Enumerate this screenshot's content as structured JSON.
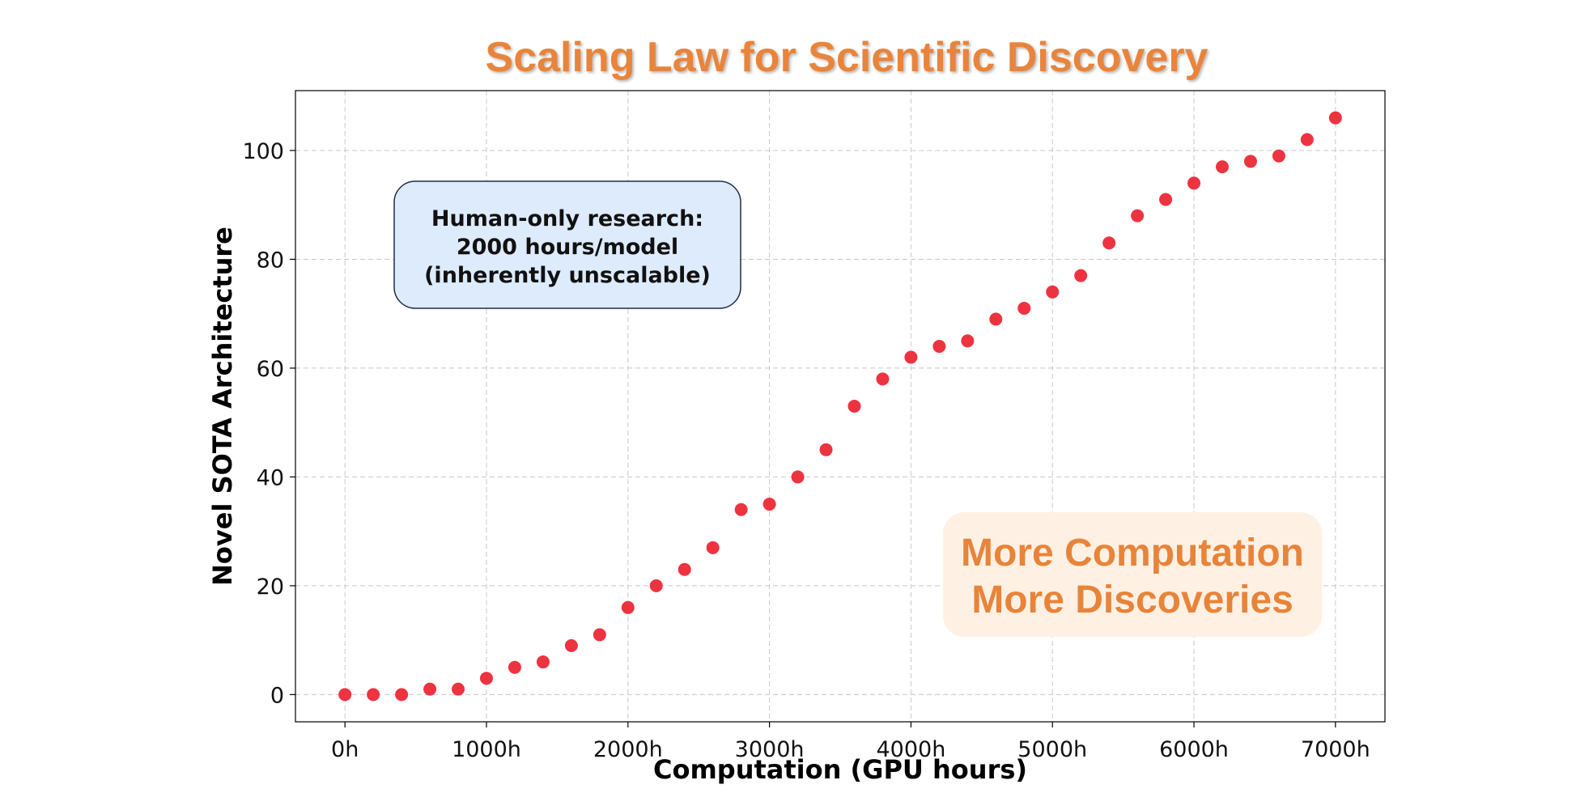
{
  "chart_data": {
    "type": "scatter",
    "title": "Scaling Law for Scientific Discovery",
    "xlabel": "Computation (GPU hours)",
    "ylabel": "Novel SOTA Architecture",
    "xlim": [
      -350,
      7350
    ],
    "ylim": [
      -5,
      111
    ],
    "x_ticks": [
      0,
      1000,
      2000,
      3000,
      4000,
      5000,
      6000,
      7000
    ],
    "x_tick_labels": [
      "0h",
      "1000h",
      "2000h",
      "3000h",
      "4000h",
      "5000h",
      "6000h",
      "7000h"
    ],
    "y_ticks": [
      0,
      20,
      40,
      60,
      80,
      100
    ],
    "y_tick_labels": [
      "0",
      "20",
      "40",
      "60",
      "80",
      "100"
    ],
    "grid": true,
    "series": [
      {
        "points": [
          {
            "x": 0,
            "y": 0
          },
          {
            "x": 200,
            "y": 0
          },
          {
            "x": 400,
            "y": 0
          },
          {
            "x": 600,
            "y": 1
          },
          {
            "x": 800,
            "y": 1
          },
          {
            "x": 1000,
            "y": 3
          },
          {
            "x": 1200,
            "y": 5
          },
          {
            "x": 1400,
            "y": 6
          },
          {
            "x": 1600,
            "y": 9
          },
          {
            "x": 1800,
            "y": 11
          },
          {
            "x": 2000,
            "y": 16
          },
          {
            "x": 2200,
            "y": 20
          },
          {
            "x": 2400,
            "y": 23
          },
          {
            "x": 2600,
            "y": 27
          },
          {
            "x": 2800,
            "y": 34
          },
          {
            "x": 3000,
            "y": 35
          },
          {
            "x": 3200,
            "y": 40
          },
          {
            "x": 3400,
            "y": 45
          },
          {
            "x": 3600,
            "y": 53
          },
          {
            "x": 3800,
            "y": 58
          },
          {
            "x": 4000,
            "y": 62
          },
          {
            "x": 4200,
            "y": 64
          },
          {
            "x": 4400,
            "y": 65
          },
          {
            "x": 4600,
            "y": 69
          },
          {
            "x": 4800,
            "y": 71
          },
          {
            "x": 5000,
            "y": 74
          },
          {
            "x": 5200,
            "y": 77
          },
          {
            "x": 5400,
            "y": 83
          },
          {
            "x": 5600,
            "y": 88
          },
          {
            "x": 5800,
            "y": 91
          },
          {
            "x": 6000,
            "y": 94
          },
          {
            "x": 6200,
            "y": 97
          },
          {
            "x": 6400,
            "y": 98
          },
          {
            "x": 6600,
            "y": 99
          },
          {
            "x": 6800,
            "y": 102
          },
          {
            "x": 7000,
            "y": 106
          }
        ]
      }
    ],
    "annotations": [
      {
        "lines": [
          "Human-only research:",
          "2000 hours/model",
          "(inherently unscalable)"
        ],
        "position": "top-left"
      },
      {
        "lines": [
          "More Computation",
          "More Discoveries"
        ],
        "position": "bottom-right"
      }
    ]
  },
  "colors": {
    "title": "#E8843A",
    "marker": "#EE3340",
    "note_fill": "#DDEBFC",
    "note_border": "#1F2D4A",
    "banner_fill": "#FEF1E4",
    "banner_text": "#E8843A"
  }
}
